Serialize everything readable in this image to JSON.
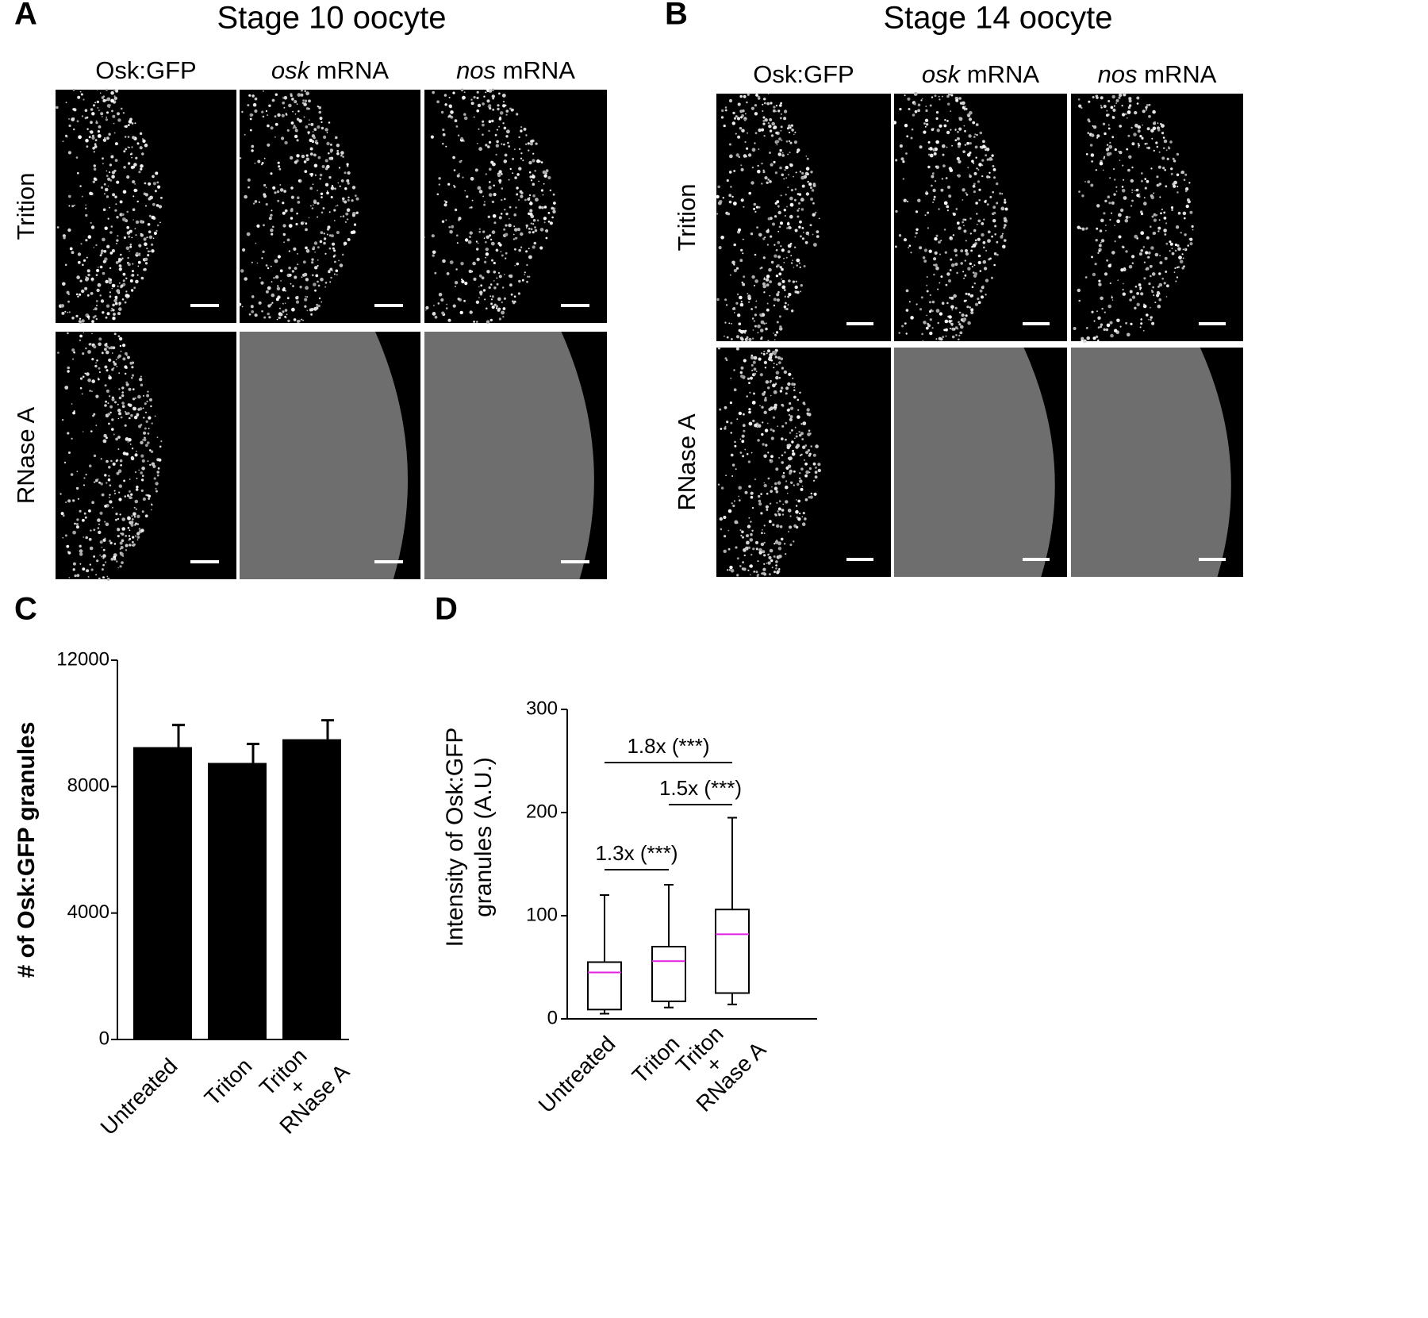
{
  "panel_a": {
    "letter": "A",
    "title": "Stage 10 oocyte",
    "columns": [
      "Osk:GFP",
      "osk mRNA",
      "nos mRNA"
    ],
    "italic_first_word": [
      false,
      true,
      true
    ],
    "rows": [
      "Trition",
      "RNase A"
    ]
  },
  "panel_b": {
    "letter": "B",
    "title": "Stage 14 oocyte",
    "columns": [
      "Osk:GFP",
      "osk mRNA",
      "nos mRNA"
    ],
    "italic_first_word": [
      false,
      true,
      true
    ],
    "rows": [
      "Trition",
      "RNase A"
    ]
  },
  "chart_data": [
    {
      "type": "bar",
      "letter": "C",
      "ylabel": "# of Osk:GFP granules",
      "categories": [
        "Untreated",
        "Triton",
        "Triton + RNase A"
      ],
      "values": [
        9250,
        8750,
        9500
      ],
      "errors": [
        700,
        600,
        600
      ],
      "color": "#000000",
      "ylim": [
        0,
        12000
      ],
      "yticks": [
        0,
        4000,
        8000,
        12000
      ]
    },
    {
      "type": "box",
      "letter": "D",
      "ylabel": [
        "Intensity of Osk:GFP",
        "granules (A.U.)"
      ],
      "categories": [
        "Untreated",
        "Triton",
        "Triton + RNase A"
      ],
      "boxes": [
        {
          "min": 5,
          "q1": 9,
          "median": 45,
          "q3": 55,
          "max": 120
        },
        {
          "min": 11,
          "q1": 17,
          "median": 56,
          "q3": 70,
          "max": 130
        },
        {
          "min": 14,
          "q1": 25,
          "median": 82,
          "q3": 106,
          "max": 195
        }
      ],
      "median_color": "#e020e0",
      "annotations": [
        "1.8x (***)",
        "1.5x (***)",
        "1.3x (***)"
      ],
      "ylim": [
        0,
        300
      ],
      "yticks": [
        0,
        100,
        200,
        300
      ]
    }
  ]
}
